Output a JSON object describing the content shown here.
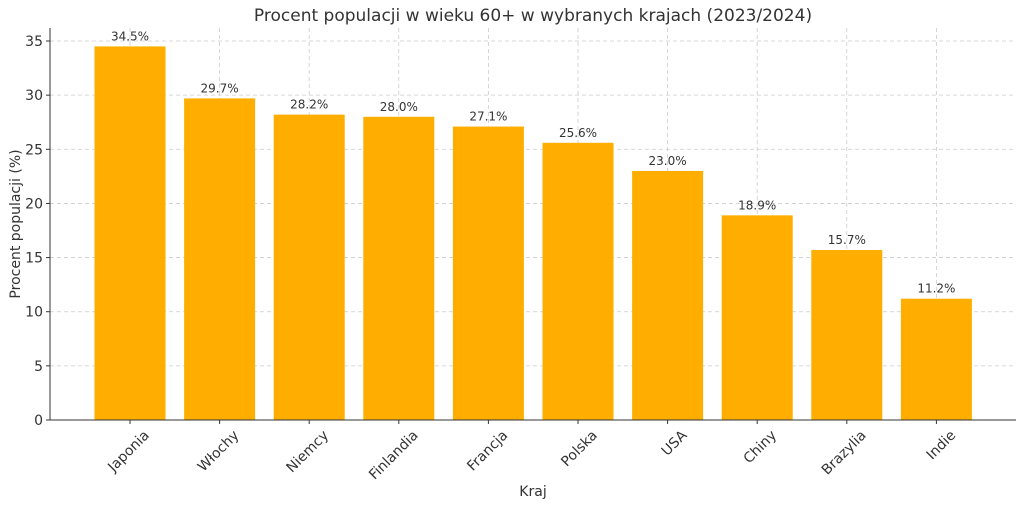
{
  "chart_data": {
    "type": "bar",
    "title": "Procent populacji w wieku 60+ w wybranych krajach (2023/2024)",
    "xlabel": "Kraj",
    "ylabel": "Procent populacji (%)",
    "categories": [
      "Japonia",
      "Włochy",
      "Niemcy",
      "Finlandia",
      "Francja",
      "Polska",
      "USA",
      "Chiny",
      "Brazylia",
      "Indie"
    ],
    "values": [
      34.5,
      29.7,
      28.2,
      28.0,
      27.1,
      25.6,
      23.0,
      18.9,
      15.7,
      11.2
    ],
    "data_labels": [
      "34.5%",
      "29.7%",
      "28.2%",
      "28.0%",
      "27.1%",
      "25.6%",
      "23.0%",
      "18.9%",
      "15.7%",
      "11.2%"
    ],
    "ylim": [
      0,
      36.2
    ],
    "yticks": [
      0,
      5,
      10,
      15,
      20,
      25,
      30,
      35
    ],
    "grid": true,
    "bar_color": "#FFAE00"
  }
}
